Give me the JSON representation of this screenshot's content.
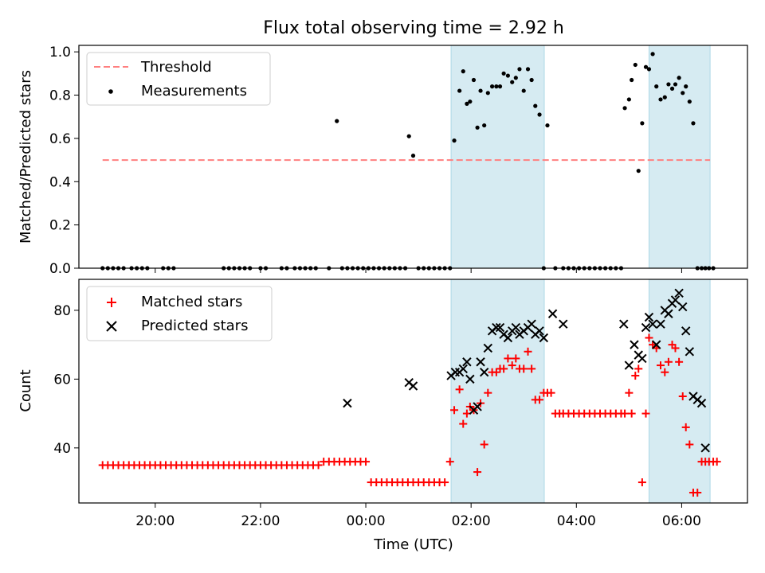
{
  "title": "Flux total observing time = 2.92 h",
  "colors": {
    "threshold": "#ff7f7f",
    "measurement": "#000000",
    "matched": "#ff0000",
    "predicted": "#000000",
    "shade": "#add8e6"
  },
  "chart_data": [
    {
      "type": "scatter",
      "ylabel": "Matched/Predicted stars",
      "xlim": [
        -5.45,
        7.25
      ],
      "ylim": [
        0,
        1.03
      ],
      "yticks": [
        0.0,
        0.2,
        0.4,
        0.6,
        0.8,
        1.0
      ],
      "ytick_labels": [
        "0.0",
        "0.2",
        "0.4",
        "0.6",
        "0.8",
        "1.0"
      ],
      "grid": false,
      "legend_position": "top-left",
      "shaded_intervals": [
        [
          1.62,
          3.39
        ],
        [
          5.38,
          6.54
        ]
      ],
      "threshold": {
        "name": "Threshold",
        "y": 0.5,
        "x_range": [
          -5.0,
          6.54
        ]
      },
      "series": [
        {
          "name": "Measurements",
          "x": [
            -5.0,
            -4.9,
            -4.8,
            -4.7,
            -4.6,
            -4.45,
            -4.35,
            -4.25,
            -4.15,
            -3.85,
            -3.75,
            -3.65,
            -2.7,
            -2.6,
            -2.5,
            -2.4,
            -2.3,
            -2.2,
            -2.0,
            -1.9,
            -1.6,
            -1.5,
            -1.35,
            -1.25,
            -1.15,
            -1.05,
            -0.95,
            -0.7,
            -0.55,
            -0.45,
            -0.35,
            -0.25,
            -0.15,
            -0.05,
            0.05,
            0.15,
            0.25,
            0.35,
            0.45,
            0.55,
            0.65,
            0.75,
            0.82,
            0.9,
            1.0,
            1.1,
            1.2,
            1.3,
            1.4,
            1.5,
            1.6,
            1.68,
            1.78,
            1.85,
            1.92,
            1.98,
            2.05,
            2.12,
            2.18,
            2.25,
            2.32,
            2.4,
            2.48,
            2.55,
            2.62,
            2.7,
            2.78,
            2.85,
            2.92,
            3.0,
            3.08,
            3.15,
            3.22,
            3.3,
            3.38,
            3.45,
            3.6,
            3.75,
            3.85,
            3.95,
            4.05,
            4.15,
            4.25,
            4.35,
            4.45,
            4.55,
            4.65,
            4.75,
            4.85,
            4.92,
            5.0,
            5.05,
            5.12,
            5.18,
            5.25,
            5.32,
            5.38,
            5.45,
            5.52,
            5.6,
            5.68,
            5.75,
            5.82,
            5.88,
            5.95,
            6.02,
            6.08,
            6.15,
            6.22,
            6.3,
            6.38,
            6.45,
            6.52,
            6.6
          ],
          "y": [
            0,
            0,
            0,
            0,
            0,
            0,
            0,
            0,
            0,
            0,
            0,
            0,
            0,
            0,
            0,
            0,
            0,
            0,
            0,
            0,
            0,
            0,
            0,
            0,
            0,
            0,
            0,
            0,
            0.68,
            0,
            0,
            0,
            0,
            0,
            0,
            0,
            0,
            0,
            0,
            0,
            0,
            0,
            0.61,
            0.52,
            0,
            0,
            0,
            0,
            0,
            0,
            0,
            0.59,
            0.82,
            0.91,
            0.76,
            0.77,
            0.87,
            0.65,
            0.82,
            0.66,
            0.81,
            0.84,
            0.84,
            0.84,
            0.9,
            0.89,
            0.86,
            0.88,
            0.92,
            0.82,
            0.92,
            0.87,
            0.75,
            0.71,
            0,
            0.66,
            0,
            0,
            0,
            0,
            0,
            0,
            0,
            0,
            0,
            0,
            0,
            0,
            0,
            0.74,
            0.78,
            0.87,
            0.94,
            0.45,
            0.67,
            0.93,
            0.92,
            0.99,
            0.84,
            0.78,
            0.79,
            0.85,
            0.83,
            0.85,
            0.88,
            0.81,
            0.84,
            0.77,
            0.67,
            0,
            0,
            0,
            0,
            0
          ]
        }
      ]
    },
    {
      "type": "scatter",
      "xlabel": "Time (UTC)",
      "ylabel": "Count",
      "xlim": [
        -5.45,
        7.25
      ],
      "ylim": [
        24,
        89
      ],
      "yticks": [
        40,
        60,
        80
      ],
      "ytick_labels": [
        "40",
        "60",
        "80"
      ],
      "xticks": [
        -4,
        -2,
        0,
        2,
        4,
        6
      ],
      "xtick_labels": [
        "20:00",
        "22:00",
        "00:00",
        "02:00",
        "04:00",
        "06:00"
      ],
      "grid": false,
      "legend_position": "top-left",
      "shaded_intervals": [
        [
          1.62,
          3.39
        ],
        [
          5.38,
          6.54
        ]
      ],
      "series": [
        {
          "name": "Matched stars",
          "marker": "plus",
          "x": [
            -5.0,
            -4.9,
            -4.8,
            -4.7,
            -4.6,
            -4.5,
            -4.4,
            -4.3,
            -4.2,
            -4.1,
            -4.0,
            -3.9,
            -3.8,
            -3.7,
            -3.6,
            -3.5,
            -3.4,
            -3.3,
            -3.2,
            -3.1,
            -3.0,
            -2.9,
            -2.8,
            -2.7,
            -2.6,
            -2.5,
            -2.4,
            -2.3,
            -2.2,
            -2.1,
            -2.0,
            -1.9,
            -1.8,
            -1.7,
            -1.6,
            -1.5,
            -1.4,
            -1.3,
            -1.2,
            -1.1,
            -1.0,
            -0.9,
            -0.8,
            -0.7,
            -0.6,
            -0.5,
            -0.4,
            -0.3,
            -0.2,
            -0.1,
            0.0,
            0.1,
            0.2,
            0.3,
            0.4,
            0.5,
            0.6,
            0.7,
            0.8,
            0.9,
            1.0,
            1.1,
            1.2,
            1.3,
            1.4,
            1.5,
            1.6,
            1.68,
            1.78,
            1.85,
            1.92,
            1.98,
            2.05,
            2.12,
            2.18,
            2.25,
            2.32,
            2.4,
            2.48,
            2.55,
            2.62,
            2.7,
            2.78,
            2.85,
            2.92,
            3.0,
            3.08,
            3.15,
            3.22,
            3.3,
            3.38,
            3.45,
            3.52,
            3.6,
            3.68,
            3.75,
            3.85,
            3.95,
            4.05,
            4.15,
            4.25,
            4.35,
            4.45,
            4.55,
            4.65,
            4.75,
            4.85,
            4.92,
            5.0,
            5.05,
            5.12,
            5.18,
            5.25,
            5.32,
            5.38,
            5.45,
            5.52,
            5.6,
            5.68,
            5.75,
            5.82,
            5.88,
            5.95,
            6.02,
            6.08,
            6.15,
            6.22,
            6.3,
            6.38,
            6.45,
            6.52,
            6.6,
            6.67
          ],
          "y": [
            35,
            35,
            35,
            35,
            35,
            35,
            35,
            35,
            35,
            35,
            35,
            35,
            35,
            35,
            35,
            35,
            35,
            35,
            35,
            35,
            35,
            35,
            35,
            35,
            35,
            35,
            35,
            35,
            35,
            35,
            35,
            35,
            35,
            35,
            35,
            35,
            35,
            35,
            35,
            35,
            35,
            35,
            36,
            36,
            36,
            36,
            36,
            36,
            36,
            36,
            36,
            30,
            30,
            30,
            30,
            30,
            30,
            30,
            30,
            30,
            30,
            30,
            30,
            30,
            30,
            30,
            36,
            51,
            57,
            47,
            50,
            52,
            51,
            33,
            53,
            41,
            56,
            62,
            62,
            63,
            63,
            66,
            64,
            66,
            63,
            63,
            68,
            63,
            54,
            54,
            56,
            56,
            56,
            50,
            50,
            50,
            50,
            50,
            50,
            50,
            50,
            50,
            50,
            50,
            50,
            50,
            50,
            50,
            56,
            50,
            61,
            63,
            30,
            50,
            72,
            70,
            69,
            64,
            62,
            65,
            70,
            69,
            65,
            55,
            46,
            41,
            27,
            27,
            36,
            36,
            36,
            36,
            36
          ]
        },
        {
          "name": "Predicted stars",
          "marker": "x",
          "x": [
            -0.35,
            0.82,
            0.9,
            1.62,
            1.7,
            1.78,
            1.85,
            1.92,
            1.98,
            2.05,
            2.12,
            2.18,
            2.25,
            2.32,
            2.4,
            2.48,
            2.55,
            2.62,
            2.7,
            2.78,
            2.85,
            2.92,
            3.0,
            3.08,
            3.15,
            3.22,
            3.3,
            3.38,
            3.55,
            3.75,
            4.9,
            5.0,
            5.1,
            5.18,
            5.25,
            5.32,
            5.38,
            5.45,
            5.52,
            5.6,
            5.68,
            5.75,
            5.82,
            5.88,
            5.95,
            6.02,
            6.08,
            6.15,
            6.22,
            6.3,
            6.38,
            6.45,
            6.52,
            6.6
          ],
          "y": [
            53,
            59,
            58,
            61,
            62,
            62,
            63,
            65,
            60,
            51,
            52,
            65,
            62,
            69,
            74,
            75,
            75,
            73,
            72,
            74,
            75,
            73,
            74,
            75,
            76,
            73,
            74,
            72,
            79,
            76,
            76,
            64,
            70,
            67,
            66,
            75,
            78,
            76,
            70,
            76,
            80,
            79,
            82,
            83,
            85,
            81,
            74,
            68,
            55,
            54,
            53,
            40,
            null,
            null
          ]
        }
      ]
    }
  ]
}
